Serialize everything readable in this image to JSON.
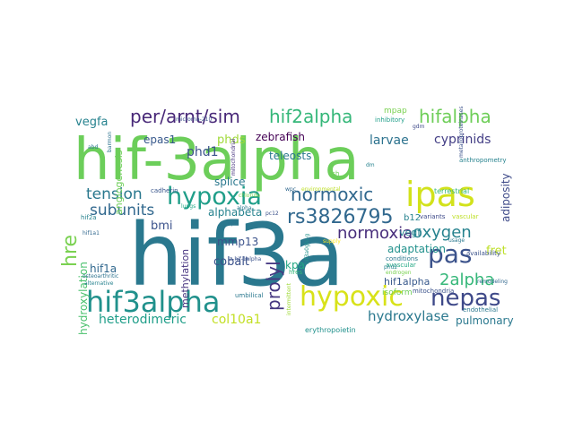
{
  "words": [
    {
      "text": "hif-3alpha",
      "color": "#6cce5a"
    },
    {
      "text": "hif3a",
      "color": "#2a788e"
    },
    {
      "text": "hif3alpha",
      "color": "#21918c"
    },
    {
      "text": "ipas",
      "color": "#d2e21b"
    },
    {
      "text": "hypoxia",
      "color": "#1f9e89"
    },
    {
      "text": "pas",
      "color": "#3b528b"
    },
    {
      "text": "nepas",
      "color": "#3e4989"
    },
    {
      "text": "hypoxic",
      "color": "#d8e219"
    },
    {
      "text": "per/arnt/sim",
      "color": "#482878"
    },
    {
      "text": "hif2alpha",
      "color": "#35b779"
    },
    {
      "text": "hifalpha",
      "color": "#6ece58"
    },
    {
      "text": "rs3826795",
      "color": "#31688e"
    },
    {
      "text": "normoxic",
      "color": "#31688e"
    },
    {
      "text": "normoxia",
      "color": "#472d7b"
    },
    {
      "text": "oxygen",
      "color": "#26828e"
    },
    {
      "text": "2alpha",
      "color": "#35b779"
    },
    {
      "text": "prolyl",
      "color": "#453781"
    },
    {
      "text": "hre",
      "color": "#7ad151"
    },
    {
      "text": "subunits",
      "color": "#31688e"
    },
    {
      "text": "tension",
      "color": "#2a788e"
    },
    {
      "text": "vegfa",
      "color": "#26828e"
    },
    {
      "text": "cyprinids",
      "color": "#433e85"
    },
    {
      "text": "larvae",
      "color": "#2c728e"
    },
    {
      "text": "phds",
      "color": "#a0da39"
    },
    {
      "text": "phd1",
      "color": "#3b528b"
    },
    {
      "text": "epas1",
      "color": "#38598c"
    },
    {
      "text": "zebrafish",
      "color": "#440154"
    },
    {
      "text": "teleosts",
      "color": "#2a788e"
    },
    {
      "text": "splice",
      "color": "#2a788e"
    },
    {
      "text": "alphabeta",
      "color": "#26828e"
    },
    {
      "text": "heterodimeric",
      "color": "#1f9e89"
    },
    {
      "text": "col10a1",
      "color": "#c2df23"
    },
    {
      "text": "hydroxylase",
      "color": "#2a788e"
    },
    {
      "text": "pulmonary",
      "color": "#2a788e"
    },
    {
      "text": "hif1alpha",
      "color": "#38598c"
    },
    {
      "text": "hif1a",
      "color": "#31688e"
    },
    {
      "text": "hydroxylation",
      "color": "#4ac16d"
    },
    {
      "text": "bmi",
      "color": "#3b528b"
    },
    {
      "text": "mmp13",
      "color": "#3b528b"
    },
    {
      "text": "cobalt",
      "color": "#3b528b"
    },
    {
      "text": "kpa",
      "color": "#22a884"
    },
    {
      "text": "methylation",
      "color": "#46337f"
    },
    {
      "text": "adaptation",
      "color": "#21918c"
    },
    {
      "text": "fret",
      "color": "#bddf26"
    },
    {
      "text": "vegf",
      "color": "#26828e"
    },
    {
      "text": "b12",
      "color": "#26828e"
    },
    {
      "text": "adiposity",
      "color": "#3e4a89"
    },
    {
      "text": "angiogenesis",
      "color": "#6ece58"
    },
    {
      "text": "mpap",
      "color": "#7ad151"
    },
    {
      "text": "inhibitory",
      "color": "#1f9e89"
    },
    {
      "text": "mitochondrial",
      "color": "#46337f"
    },
    {
      "text": "barmon",
      "color": "#2c728e"
    },
    {
      "text": "cadherin",
      "color": "#39568c"
    },
    {
      "text": "fish",
      "color": "#6ece58"
    },
    {
      "text": "terrestrial",
      "color": "#35b779"
    },
    {
      "text": "microrna-210",
      "color": "#3b528b"
    },
    {
      "text": "anthropometry",
      "color": "#26828e"
    },
    {
      "text": "metalloproteinases",
      "color": "#3b528b"
    },
    {
      "text": "gdm",
      "color": "#3e4a89"
    },
    {
      "text": "erythropoietin",
      "color": "#21918c"
    },
    {
      "text": "endothelial",
      "color": "#2a788e"
    },
    {
      "text": "remodeling",
      "color": "#31688e"
    },
    {
      "text": "mitochondria",
      "color": "#3b528b"
    },
    {
      "text": "isoform",
      "color": "#6ece58"
    },
    {
      "text": "intermittent",
      "color": "#a0da39"
    },
    {
      "text": "conditions",
      "color": "#2a788e"
    },
    {
      "text": "avascular",
      "color": "#22a884"
    },
    {
      "text": "availability",
      "color": "#3b528b"
    },
    {
      "text": "variants",
      "color": "#3e4a89"
    },
    {
      "text": "vascular",
      "color": "#bddf26"
    },
    {
      "text": "supply",
      "color": "#fde725"
    },
    {
      "text": "umbilical",
      "color": "#2a788e"
    },
    {
      "text": "osteoarthritic",
      "color": "#2c728e"
    },
    {
      "text": "alternative",
      "color": "#26828e"
    },
    {
      "text": "hif2a",
      "color": "#26828e"
    },
    {
      "text": "hif1a1",
      "color": "#31688e"
    },
    {
      "text": "epo",
      "color": "#2c728e"
    },
    {
      "text": "pc12",
      "color": "#3b528b"
    },
    {
      "text": "hres",
      "color": "#35b779"
    },
    {
      "text": "lungs",
      "color": "#22a884"
    },
    {
      "text": "usage",
      "color": "#2a788e"
    },
    {
      "text": "chloride",
      "color": "#7ad151"
    },
    {
      "text": "z-hif-1alpha",
      "color": "#3b528b"
    },
    {
      "text": "environmental",
      "color": "#bddf26"
    },
    {
      "text": "hif3a0glu-g",
      "color": "#21918c"
    },
    {
      "text": "wpc",
      "color": "#31688e"
    },
    {
      "text": "dm",
      "color": "#26828e"
    },
    {
      "text": "phd2",
      "color": "#26828e"
    },
    {
      "text": "abd",
      "color": "#2a788e"
    },
    {
      "text": "endrogen",
      "color": "#7ad151"
    },
    {
      "text": "alpha",
      "color": "#2a788e"
    }
  ]
}
